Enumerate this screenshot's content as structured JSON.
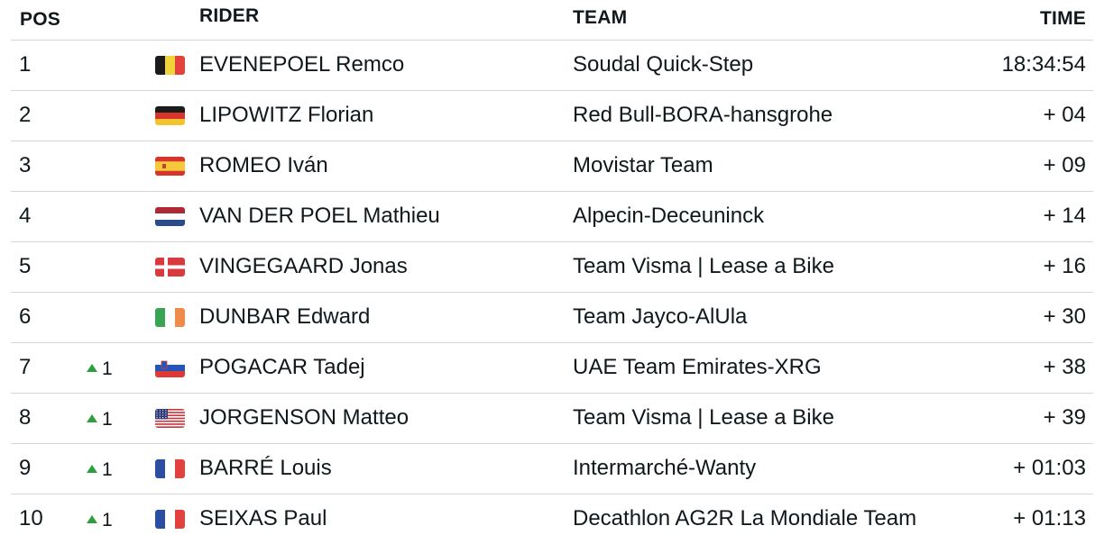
{
  "headers": {
    "pos": "POS",
    "rider": "RIDER",
    "team": "TEAM",
    "time": "TIME"
  },
  "rows": [
    {
      "pos": "1",
      "change": "",
      "flag": "belgium-flag",
      "rider": "EVENEPOEL Remco",
      "team": "Soudal Quick-Step",
      "time": "18:34:54"
    },
    {
      "pos": "2",
      "change": "",
      "flag": "germany-flag",
      "rider": "LIPOWITZ Florian",
      "team": "Red Bull-BORA-hansgrohe",
      "time": "+ 04"
    },
    {
      "pos": "3",
      "change": "",
      "flag": "spain-flag",
      "rider": "ROMEO Iván",
      "team": "Movistar Team",
      "time": "+ 09"
    },
    {
      "pos": "4",
      "change": "",
      "flag": "netherlands-flag",
      "rider": "VAN DER POEL Mathieu",
      "team": "Alpecin-Deceuninck",
      "time": "+ 14"
    },
    {
      "pos": "5",
      "change": "",
      "flag": "denmark-flag",
      "rider": "VINGEGAARD Jonas",
      "team": "Team Visma | Lease a Bike",
      "time": "+ 16"
    },
    {
      "pos": "6",
      "change": "",
      "flag": "ireland-flag",
      "rider": "DUNBAR Edward",
      "team": "Team Jayco-AlUla",
      "time": "+ 30"
    },
    {
      "pos": "7",
      "change": "1",
      "flag": "slovenia-flag",
      "rider": "POGACAR Tadej",
      "team": "UAE Team Emirates-XRG",
      "time": "+ 38"
    },
    {
      "pos": "8",
      "change": "1",
      "flag": "usa-flag",
      "rider": "JORGENSON Matteo",
      "team": "Team Visma | Lease a Bike",
      "time": "+ 39"
    },
    {
      "pos": "9",
      "change": "1",
      "flag": "france-flag",
      "rider": "BARRÉ Louis",
      "team": "Intermarché-Wanty",
      "time": "+ 01:03"
    },
    {
      "pos": "10",
      "change": "1",
      "flag": "france-flag",
      "rider": "SEIXAS Paul",
      "team": "Decathlon AG2R La Mondiale Team",
      "time": "+ 01:13"
    }
  ],
  "colors": {
    "text": "#10181c",
    "divider": "#d4d8db",
    "up_arrow": "#2e9e3e"
  }
}
